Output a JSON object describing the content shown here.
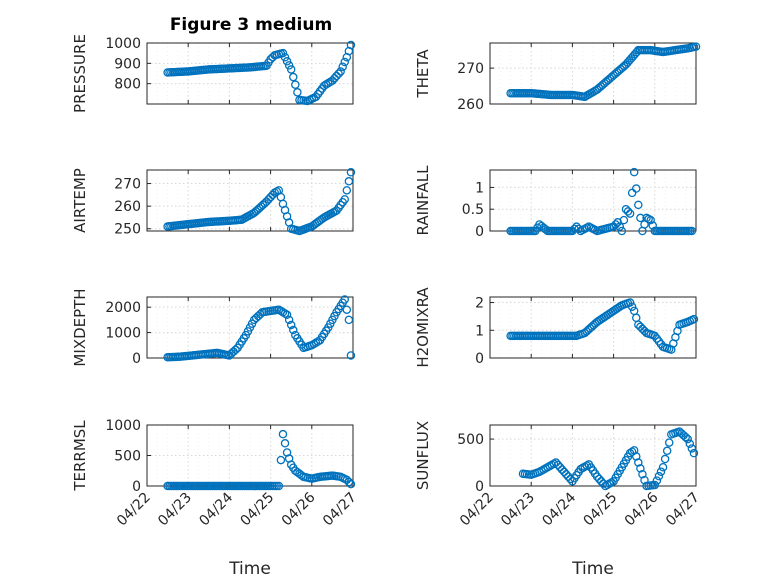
{
  "colors": {
    "series": "#0072bd",
    "axes": "#262626",
    "grid": "#d7d7d7"
  },
  "figure": {
    "title": "Figure 3 medium"
  },
  "chart_data": [
    {
      "type": "scatter",
      "title": "Figure 3 medium",
      "ylabel": "PRESSURE",
      "xlabel": "",
      "ylim": [
        700,
        1000
      ],
      "yticks": [
        800,
        900,
        1000
      ],
      "ytick_labels": [
        "800",
        "900",
        "1000"
      ],
      "xlim": [
        0,
        5
      ],
      "xtick_labels": [
        "04/22",
        "04/23",
        "04/24",
        "04/25",
        "04/26",
        "04/27"
      ],
      "show_xticklabels": false,
      "x": [
        0.5,
        1.0,
        1.5,
        2.0,
        2.5,
        2.9,
        3.0,
        3.1,
        3.2,
        3.3,
        3.5,
        3.7,
        3.9,
        4.1,
        4.3,
        4.5,
        4.7,
        4.85,
        4.95
      ],
      "y": [
        855,
        860,
        870,
        875,
        880,
        888,
        920,
        940,
        945,
        950,
        870,
        720,
        715,
        735,
        790,
        815,
        860,
        930,
        990
      ]
    },
    {
      "type": "scatter",
      "ylabel": "THETA",
      "xlabel": "",
      "ylim": [
        260,
        277
      ],
      "yticks": [
        260,
        270
      ],
      "ytick_labels": [
        "260",
        "270"
      ],
      "xlim": [
        0,
        5
      ],
      "xtick_labels": [
        "04/22",
        "04/23",
        "04/24",
        "04/25",
        "04/26",
        "04/27"
      ],
      "show_xticklabels": false,
      "x": [
        0.5,
        1.0,
        1.5,
        2.0,
        2.3,
        2.6,
        3.0,
        3.3,
        3.6,
        3.9,
        4.2,
        4.5,
        4.8,
        5.0
      ],
      "y": [
        263,
        263,
        262.5,
        262.5,
        262,
        264,
        268,
        271,
        275,
        275,
        274.5,
        275,
        275.5,
        276
      ]
    },
    {
      "type": "scatter",
      "ylabel": "AIR_TEMP",
      "xlabel": "",
      "ylim": [
        249,
        276
      ],
      "yticks": [
        250,
        260,
        270
      ],
      "ytick_labels": [
        "250",
        "260",
        "270"
      ],
      "xlim": [
        0,
        5
      ],
      "xtick_labels": [
        "04/22",
        "04/23",
        "04/24",
        "04/25",
        "04/26",
        "04/27"
      ],
      "show_xticklabels": false,
      "x": [
        0.5,
        1.0,
        1.5,
        2.0,
        2.3,
        2.6,
        2.9,
        3.1,
        3.2,
        3.3,
        3.5,
        3.7,
        4.0,
        4.3,
        4.6,
        4.8,
        4.95
      ],
      "y": [
        251,
        252,
        253,
        253.5,
        254,
        257,
        262,
        266,
        267,
        261,
        250,
        249,
        251,
        255,
        258,
        263,
        275
      ]
    },
    {
      "type": "scatter",
      "ylabel": "RAINFALL",
      "xlabel": "",
      "ylim": [
        0,
        1.4
      ],
      "yticks": [
        0,
        0.5,
        1
      ],
      "ytick_labels": [
        "0",
        "0.5",
        "1"
      ],
      "xlim": [
        0,
        5
      ],
      "xtick_labels": [
        "04/22",
        "04/23",
        "04/24",
        "04/25",
        "04/26",
        "04/27"
      ],
      "show_xticklabels": false,
      "x": [
        0.5,
        0.8,
        1.1,
        1.2,
        1.4,
        1.7,
        2.0,
        2.1,
        2.2,
        2.4,
        2.6,
        2.8,
        3.0,
        3.1,
        3.2,
        3.3,
        3.4,
        3.5,
        3.6,
        3.7,
        3.8,
        3.9,
        4.0,
        4.3,
        4.6,
        4.9
      ],
      "y": [
        0,
        0,
        0,
        0.15,
        0,
        0,
        0,
        0.1,
        0,
        0.1,
        0,
        0.05,
        0.1,
        0.2,
        0,
        0.5,
        0.4,
        1.35,
        0.6,
        0,
        0.3,
        0.25,
        0,
        0,
        0,
        0
      ]
    },
    {
      "type": "scatter",
      "ylabel": "MIXDEPTH",
      "xlabel": "",
      "ylim": [
        0,
        2400
      ],
      "yticks": [
        0,
        1000,
        2000
      ],
      "ytick_labels": [
        "0",
        "1000",
        "2000"
      ],
      "xlim": [
        0,
        5
      ],
      "xtick_labels": [
        "04/22",
        "04/23",
        "04/24",
        "04/25",
        "04/26",
        "04/27"
      ],
      "show_xticklabels": false,
      "x": [
        0.5,
        0.8,
        1.1,
        1.4,
        1.7,
        2.0,
        2.2,
        2.4,
        2.6,
        2.8,
        3.0,
        3.2,
        3.4,
        3.5,
        3.6,
        3.8,
        4.0,
        4.2,
        4.4,
        4.6,
        4.8,
        4.9,
        4.95
      ],
      "y": [
        30,
        50,
        100,
        150,
        200,
        100,
        400,
        900,
        1500,
        1800,
        1850,
        1900,
        1700,
        1300,
        900,
        400,
        500,
        700,
        1200,
        1800,
        2300,
        1500,
        100
      ]
    },
    {
      "type": "scatter",
      "ylabel": "H2OMIXRA",
      "xlabel": "",
      "ylim": [
        0,
        2.2
      ],
      "yticks": [
        0,
        1,
        2
      ],
      "ytick_labels": [
        "0",
        "1",
        "2"
      ],
      "xlim": [
        0,
        5
      ],
      "xtick_labels": [
        "04/22",
        "04/23",
        "04/24",
        "04/25",
        "04/26",
        "04/27"
      ],
      "show_xticklabels": false,
      "x": [
        0.5,
        0.9,
        1.3,
        1.7,
        2.1,
        2.3,
        2.6,
        2.9,
        3.2,
        3.4,
        3.5,
        3.6,
        3.8,
        4.0,
        4.2,
        4.4,
        4.6,
        4.8,
        4.95
      ],
      "y": [
        0.8,
        0.8,
        0.8,
        0.8,
        0.8,
        0.9,
        1.3,
        1.6,
        1.9,
        2.0,
        1.7,
        1.2,
        0.9,
        0.8,
        0.4,
        0.3,
        1.2,
        1.3,
        1.4
      ]
    },
    {
      "type": "scatter",
      "ylabel": "TERR_MSL",
      "xlabel": "Time",
      "ylim": [
        0,
        1000
      ],
      "yticks": [
        0,
        500,
        1000
      ],
      "ytick_labels": [
        "0",
        "500",
        "1000"
      ],
      "xlim": [
        0,
        5
      ],
      "xtick_labels": [
        "04/22",
        "04/23",
        "04/24",
        "04/25",
        "04/26",
        "04/27"
      ],
      "show_xticklabels": true,
      "x": [
        0.5,
        1.0,
        1.5,
        2.0,
        2.5,
        3.0,
        3.2,
        3.3,
        3.4,
        3.5,
        3.6,
        3.8,
        4.0,
        4.2,
        4.5,
        4.7,
        4.85,
        4.95
      ],
      "y": [
        0,
        0,
        0,
        0,
        0,
        0,
        0,
        850,
        550,
        350,
        250,
        150,
        120,
        150,
        170,
        150,
        100,
        30
      ]
    },
    {
      "type": "scatter",
      "ylabel": "SUN_FLUX",
      "xlabel": "Time",
      "ylim": [
        0,
        650
      ],
      "yticks": [
        0,
        500
      ],
      "ytick_labels": [
        "0",
        "500"
      ],
      "xlim": [
        0,
        5
      ],
      "xtick_labels": [
        "04/22",
        "04/23",
        "04/24",
        "04/25",
        "04/26",
        "04/27"
      ],
      "show_xticklabels": true,
      "x": [
        0.8,
        1.0,
        1.2,
        1.4,
        1.6,
        1.8,
        2.0,
        2.2,
        2.4,
        2.6,
        2.8,
        3.0,
        3.2,
        3.4,
        3.5,
        3.6,
        3.8,
        4.0,
        4.2,
        4.4,
        4.6,
        4.8,
        4.95
      ],
      "y": [
        130,
        120,
        150,
        200,
        250,
        150,
        50,
        180,
        230,
        100,
        0,
        50,
        200,
        350,
        380,
        250,
        0,
        10,
        200,
        550,
        580,
        500,
        350
      ]
    }
  ]
}
